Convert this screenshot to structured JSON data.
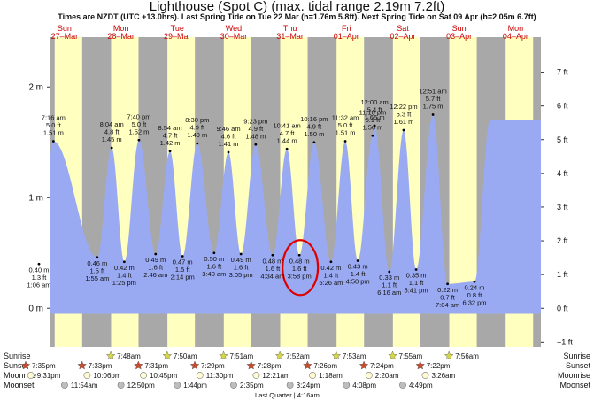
{
  "page": {
    "title": "Lighthouse (Spot C) (max. tidal range 2.19m 7.2ft)",
    "subtitle": "Times are NZDT (UTC +13.0hrs). Last Spring Tide on Tue 22 Mar (h=1.76m 5.8ft). Next Spring Tide on Sat 09 Apr (h=2.05m 6.7ft)"
  },
  "colors": {
    "day_band": "#ffffc0",
    "night_band": "#a8a8a8",
    "tide_fill": "#9aaaf2",
    "date_text": "#cc0000",
    "highlight_circle": "#dd0000",
    "sun_star": "#d6d64a",
    "sunset_star": "#c84b2e"
  },
  "chart_data": {
    "type": "area",
    "title": "Lighthouse (Spot C) (max. tidal range 2.19m 7.2ft)",
    "y_unit_left": "m",
    "y_unit_right": "ft",
    "ylim_m": [
      -0.35,
      2.45
    ],
    "y_ticks_m": [
      {
        "label": "2 m",
        "value": 2.0
      },
      {
        "label": "1 m",
        "value": 1.0
      },
      {
        "label": "0 m",
        "value": 0.0
      }
    ],
    "y_ticks_ft": [
      {
        "label": "7 ft",
        "value": 7
      },
      {
        "label": "6 ft",
        "value": 6
      },
      {
        "label": "5 ft",
        "value": 5
      },
      {
        "label": "4 ft",
        "value": 4
      },
      {
        "label": "3 ft",
        "value": 3
      },
      {
        "label": "2 ft",
        "value": 2
      },
      {
        "label": "1 ft",
        "value": 1
      },
      {
        "label": "0 ft",
        "value": 0
      },
      {
        "label": "−1 ft",
        "value": -1
      }
    ],
    "days": [
      {
        "weekday": "Sun",
        "date": "27–Mar"
      },
      {
        "weekday": "Mon",
        "date": "28–Mar"
      },
      {
        "weekday": "Tue",
        "date": "29–Mar"
      },
      {
        "weekday": "Wed",
        "date": "30–Mar"
      },
      {
        "weekday": "Thu",
        "date": "31–Mar"
      },
      {
        "weekday": "Fri",
        "date": "01–Apr"
      },
      {
        "weekday": "Sat",
        "date": "02–Apr"
      },
      {
        "weekday": "Sun",
        "date": "03–Apr"
      },
      {
        "weekday": "Mon",
        "date": "04–Apr"
      }
    ],
    "tides": [
      {
        "type": "high",
        "day": 0,
        "time": "7:16 am",
        "m": 1.51,
        "lines": [
          "7:16 am",
          "5.0 ft",
          "1.51 m"
        ]
      },
      {
        "type": "low",
        "day": 0,
        "time": "1:06 am",
        "m": 0.4,
        "lines": [
          "0.40 m",
          "1.3 ft",
          "1:06 am"
        ]
      },
      {
        "type": "high",
        "day": 1,
        "time": "7:40 pm",
        "m": 1.52,
        "lines": [
          "7:40 pm",
          "5.0 ft",
          "1.52 m"
        ]
      },
      {
        "type": "low",
        "day": 1,
        "time": "1:25 pm",
        "m": 0.42,
        "lines": [
          "0.42 m",
          "1.4 ft",
          "1:25 pm"
        ]
      },
      {
        "type": "high",
        "day": 1,
        "time": "8:04 am",
        "m": 1.45,
        "lines": [
          "8:04 am",
          "4.8 ft",
          "1.45 m"
        ]
      },
      {
        "type": "low",
        "day": 1,
        "time": "1:55 am",
        "m": 0.46,
        "lines": [
          "0.46 m",
          "1.5 ft",
          "1:55 am"
        ]
      },
      {
        "type": "high",
        "day": 2,
        "time": "8:30 pm",
        "m": 1.49,
        "lines": [
          "8:30 pm",
          "4.9 ft",
          "1.49 m"
        ]
      },
      {
        "type": "low",
        "day": 2,
        "time": "2:14 pm",
        "m": 0.47,
        "lines": [
          "0.47 m",
          "1.5 ft",
          "2:14 pm"
        ]
      },
      {
        "type": "high",
        "day": 2,
        "time": "8:54 am",
        "m": 1.42,
        "lines": [
          "8:54 am",
          "4.7 ft",
          "1.42 m"
        ]
      },
      {
        "type": "low",
        "day": 2,
        "time": "2:46 am",
        "m": 0.49,
        "lines": [
          "0.49 m",
          "1.6 ft",
          "2:46 am"
        ]
      },
      {
        "type": "high",
        "day": 3,
        "time": "9:23 pm",
        "m": 1.48,
        "lines": [
          "9:23 pm",
          "4.9 ft",
          "1.48 m"
        ]
      },
      {
        "type": "low",
        "day": 3,
        "time": "3:05 pm",
        "m": 0.49,
        "lines": [
          "0.49 m",
          "1.6 ft",
          "3:05 pm"
        ]
      },
      {
        "type": "high",
        "day": 3,
        "time": "9:46 am",
        "m": 1.41,
        "lines": [
          "9:46 am",
          "4.6 ft",
          "1.41 m"
        ]
      },
      {
        "type": "low",
        "day": 3,
        "time": "3:40 am",
        "m": 0.5,
        "lines": [
          "0.50 m",
          "1.6 ft",
          "3:40 am"
        ]
      },
      {
        "type": "high",
        "day": 4,
        "time": "10:16 pm",
        "m": 1.5,
        "lines": [
          "10:16 pm",
          "4.9 ft",
          "1.50 m"
        ]
      },
      {
        "type": "low",
        "day": 4,
        "time": "3:58 pm",
        "m": 0.48,
        "lines": [
          "0.48 m",
          "1.6 ft",
          "3:58 pm"
        ]
      },
      {
        "type": "high",
        "day": 4,
        "time": "10:41 am",
        "m": 1.44,
        "lines": [
          "10:41 am",
          "4.7 ft",
          "1.44 m"
        ]
      },
      {
        "type": "low",
        "day": 4,
        "time": "4:34 am",
        "m": 0.48,
        "lines": [
          "0.48 m",
          "1.6 ft",
          "4:34 am"
        ]
      },
      {
        "type": "high",
        "day": 5,
        "time": "11:10 pm",
        "m": 1.56,
        "lines": [
          "11:10 pm",
          "5.1 ft",
          "1.56 m"
        ]
      },
      {
        "type": "low",
        "day": 5,
        "time": "4:50 pm",
        "m": 0.43,
        "lines": [
          "0.43 m",
          "1.4 ft",
          "4:50 pm"
        ]
      },
      {
        "type": "high",
        "day": 5,
        "time": "11:32 am",
        "m": 1.51,
        "lines": [
          "11:32 am",
          "5.0 ft",
          "1.51 m"
        ]
      },
      {
        "type": "low",
        "day": 5,
        "time": "5:26 am",
        "m": 0.42,
        "lines": [
          "0.42 m",
          "1.4 ft",
          "5:26 am"
        ]
      },
      {
        "type": "high",
        "day": 6,
        "time": "12:00 am",
        "m": 1.65,
        "lines": [
          "12:00 am",
          "5.4 ft",
          "1.65 m"
        ]
      },
      {
        "type": "low",
        "day": 6,
        "time": "5:41 pm",
        "m": 0.35,
        "lines": [
          "0.35 m",
          "1.1 ft",
          "5:41 pm"
        ]
      },
      {
        "type": "high",
        "day": 6,
        "time": "12:22 pm",
        "m": 1.61,
        "lines": [
          "12:22 pm",
          "5.3 ft",
          "1.61 m"
        ]
      },
      {
        "type": "low",
        "day": 6,
        "time": "6:16 am",
        "m": 0.33,
        "lines": [
          "0.33 m",
          "1.1 ft",
          "6:16 am"
        ]
      },
      {
        "type": "high",
        "day": 7,
        "time": "12:51 am",
        "m": 1.75,
        "lines": [
          "12:51 am",
          "5.7 ft",
          "1.75 m"
        ]
      },
      {
        "type": "low",
        "day": 7,
        "time": "6:32 pm",
        "m": 0.24,
        "lines": [
          "0.24 m",
          "0.8 ft",
          "6:32 pm"
        ]
      },
      {
        "type": "low",
        "day": 7,
        "time": "7:04 am",
        "m": 0.22,
        "lines": [
          "0.22 m",
          "0.7 ft",
          "7:04 am"
        ]
      }
    ],
    "highlighted_low": "3:58 pm",
    "bottom_rows": [
      {
        "label": "Sunrise",
        "icon": "sun-star-icon",
        "values": [
          "",
          "7:48am",
          "7:50am",
          "7:51am",
          "7:52am",
          "7:53am",
          "7:55am",
          "7:56am",
          ""
        ]
      },
      {
        "label": "Sunset",
        "icon": "sunset-star-icon",
        "values": [
          "7:35pm",
          "7:33pm",
          "7:31pm",
          "7:29pm",
          "7:28pm",
          "7:26pm",
          "7:24pm",
          "7:22pm",
          ""
        ]
      },
      {
        "label": "Moonrise",
        "icon": "moonrise-icon",
        "values": [
          "9:31pm",
          "10:06pm",
          "10:45pm",
          "11:30pm",
          "12:21am",
          "1:18am",
          "2:20am",
          "3:26am",
          ""
        ]
      },
      {
        "label": "Moonset",
        "icon": "moonset-icon",
        "values": [
          "11:54am",
          "12:50pm",
          "1:44pm",
          "2:35pm",
          "3:24pm",
          "4:08pm",
          "4:49pm",
          "",
          ""
        ]
      }
    ],
    "moon_phase_note": "Last Quarter | 4:16am"
  }
}
